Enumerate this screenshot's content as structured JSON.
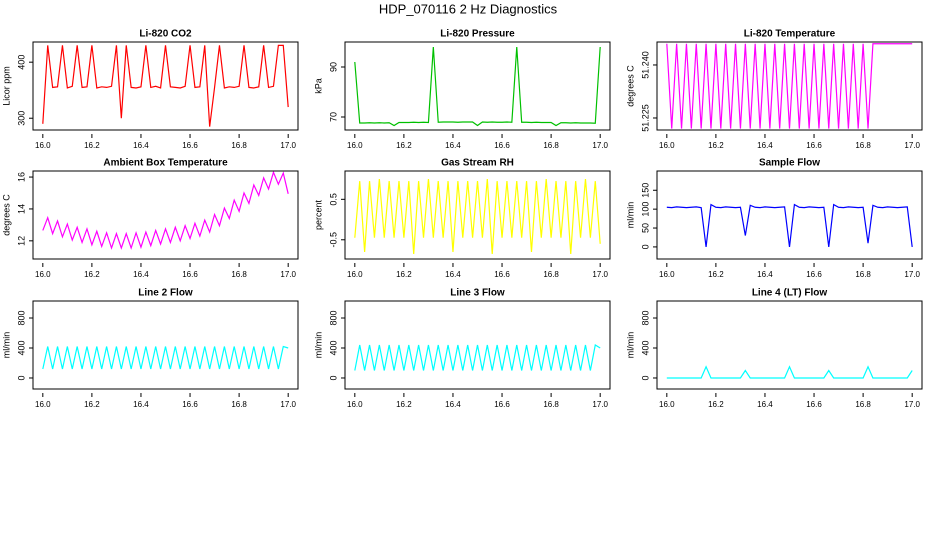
{
  "title": "HDP_070116  2 Hz Diagnostics",
  "chart_data": [
    {
      "type": "line",
      "title": "Li-820 CO2",
      "ylabel": "Licor ppm",
      "color": "#ff0000",
      "x": [
        16,
        16.02,
        16.04,
        16.06,
        16.08,
        16.1,
        16.12,
        16.14,
        16.16,
        16.18,
        16.2,
        16.22,
        16.24,
        16.26,
        16.28,
        16.3,
        16.32,
        16.34,
        16.36,
        16.38,
        16.4,
        16.42,
        16.44,
        16.46,
        16.48,
        16.5,
        16.52,
        16.54,
        16.56,
        16.58,
        16.6,
        16.62,
        16.64,
        16.66,
        16.68,
        16.7,
        16.72,
        16.74,
        16.76,
        16.78,
        16.8,
        16.82,
        16.84,
        16.86,
        16.88,
        16.9,
        16.92,
        16.94,
        16.96,
        16.98,
        17
      ],
      "values": [
        290,
        430,
        355,
        356,
        430,
        354,
        357,
        430,
        355,
        356,
        430,
        354,
        356,
        355,
        357,
        430,
        300,
        430,
        355,
        354,
        356,
        430,
        355,
        357,
        354,
        430,
        356,
        355,
        354,
        357,
        430,
        355,
        356,
        430,
        285,
        355,
        430,
        354,
        356,
        355,
        357,
        430,
        355,
        354,
        356,
        430,
        355,
        357,
        430,
        430,
        320
      ],
      "xlim": [
        15.96,
        17.04
      ],
      "xticks": [
        {
          "value": 16,
          "label": "16.0"
        },
        16.2,
        16.4,
        16.6,
        16.8,
        {
          "value": 17,
          "label": "17.0"
        }
      ],
      "ylim": [
        279,
        436
      ],
      "yticks": [
        300,
        400
      ]
    },
    {
      "type": "line",
      "title": "Li-820 Pressure",
      "ylabel": "kPa",
      "color": "#00c000",
      "x": [
        16,
        16.02,
        16.04,
        16.06,
        16.08,
        16.1,
        16.12,
        16.14,
        16.16,
        16.18,
        16.2,
        16.22,
        16.24,
        16.26,
        16.28,
        16.3,
        16.32,
        16.34,
        16.36,
        16.38,
        16.4,
        16.42,
        16.44,
        16.46,
        16.48,
        16.5,
        16.52,
        16.54,
        16.56,
        16.58,
        16.6,
        16.62,
        16.64,
        16.66,
        16.68,
        16.7,
        16.72,
        16.74,
        16.76,
        16.78,
        16.8,
        16.82,
        16.84,
        16.86,
        16.88,
        16.9,
        16.92,
        16.94,
        16.96,
        16.98,
        17
      ],
      "values": [
        92,
        67.6,
        67.6,
        67.7,
        67.6,
        67.7,
        67.6,
        67.7,
        66.6,
        67.8,
        67.8,
        67.8,
        67.9,
        67.8,
        67.9,
        67.8,
        98,
        67.9,
        68,
        68,
        68,
        67.9,
        68,
        68,
        68,
        66.6,
        68,
        67.9,
        68,
        67.9,
        67.9,
        68,
        67.9,
        98,
        67.9,
        67.9,
        67.8,
        67.9,
        67.8,
        67.8,
        67.8,
        66.6,
        67.7,
        67.7,
        67.6,
        67.7,
        67.6,
        67.6,
        67.6,
        67.5,
        98
      ],
      "xlim": [
        15.96,
        17.04
      ],
      "xticks": [
        {
          "value": 16,
          "label": "16.0"
        },
        16.2,
        16.4,
        16.6,
        16.8,
        {
          "value": 17,
          "label": "17.0"
        }
      ],
      "ylim": [
        64.8,
        100
      ],
      "yticks": [
        70,
        90
      ]
    },
    {
      "type": "line",
      "title": "Li-820 Temperature",
      "ylabel": "degrees C",
      "color": "#ff00ff",
      "x": [
        16,
        16.02,
        16.04,
        16.06,
        16.08,
        16.1,
        16.12,
        16.14,
        16.16,
        16.18,
        16.2,
        16.22,
        16.24,
        16.26,
        16.28,
        16.3,
        16.32,
        16.34,
        16.36,
        16.38,
        16.4,
        16.42,
        16.44,
        16.46,
        16.48,
        16.5,
        16.52,
        16.54,
        16.56,
        16.58,
        16.6,
        16.62,
        16.64,
        16.66,
        16.68,
        16.7,
        16.72,
        16.74,
        16.76,
        16.78,
        16.8,
        16.82,
        16.84,
        16.86,
        16.88,
        16.9,
        16.92,
        16.94,
        16.96,
        16.98,
        17
      ],
      "values": [
        51.246,
        51.222,
        51.246,
        51.222,
        51.246,
        51.222,
        51.246,
        51.222,
        51.246,
        51.222,
        51.246,
        51.222,
        51.246,
        51.222,
        51.246,
        51.222,
        51.246,
        51.222,
        51.246,
        51.222,
        51.246,
        51.222,
        51.246,
        51.222,
        51.246,
        51.222,
        51.246,
        51.222,
        51.246,
        51.222,
        51.246,
        51.222,
        51.246,
        51.222,
        51.246,
        51.222,
        51.246,
        51.222,
        51.246,
        51.222,
        51.246,
        51.222,
        51.246,
        51.246,
        51.246,
        51.246,
        51.246,
        51.246,
        51.246,
        51.246,
        51.246
      ],
      "xlim": [
        15.96,
        17.04
      ],
      "xticks": [
        {
          "value": 16,
          "label": "16.0"
        },
        16.2,
        16.4,
        16.6,
        16.8,
        {
          "value": 17,
          "label": "17.0"
        }
      ],
      "ylim": [
        51.2216,
        51.2465
      ],
      "yticks": [
        51.225,
        {
          "value": 51.24,
          "label": "51.240"
        }
      ]
    },
    {
      "type": "line",
      "title": "Ambient Box Temperature",
      "ylabel": "degrees C",
      "color": "#ff00ff",
      "x": [
        16,
        16.02,
        16.04,
        16.06,
        16.08,
        16.1,
        16.12,
        16.14,
        16.16,
        16.18,
        16.2,
        16.22,
        16.24,
        16.26,
        16.28,
        16.3,
        16.32,
        16.34,
        16.36,
        16.38,
        16.4,
        16.42,
        16.44,
        16.46,
        16.48,
        16.5,
        16.52,
        16.54,
        16.56,
        16.58,
        16.6,
        16.62,
        16.64,
        16.66,
        16.68,
        16.7,
        16.72,
        16.74,
        16.76,
        16.78,
        16.8,
        16.82,
        16.84,
        16.86,
        16.88,
        16.9,
        16.92,
        16.94,
        16.96,
        16.98,
        17
      ],
      "values": [
        12.65,
        13.45,
        12.45,
        13.25,
        12.25,
        13.05,
        12.05,
        12.85,
        11.9,
        12.75,
        11.75,
        12.6,
        11.65,
        12.5,
        11.55,
        12.45,
        11.55,
        12.45,
        11.55,
        12.5,
        11.6,
        12.55,
        11.7,
        12.65,
        11.8,
        12.75,
        11.9,
        12.85,
        12.0,
        12.95,
        12.15,
        13.1,
        12.3,
        13.3,
        12.55,
        13.65,
        12.95,
        14.05,
        13.4,
        14.55,
        13.85,
        15.0,
        14.35,
        15.5,
        14.85,
        15.95,
        15.25,
        16.3,
        15.55,
        16.25,
        14.95
      ],
      "xlim": [
        15.96,
        17.04
      ],
      "xticks": [
        {
          "value": 16,
          "label": "16.0"
        },
        16.2,
        16.4,
        16.6,
        16.8,
        {
          "value": 17,
          "label": "17.0"
        }
      ],
      "ylim": [
        10.86,
        16.38
      ],
      "yticks": [
        12,
        14,
        16
      ]
    },
    {
      "type": "line",
      "title": "Gas Stream RH",
      "ylabel": "percent",
      "color": "#ffff00",
      "x": [
        16,
        16.02,
        16.04,
        16.06,
        16.08,
        16.1,
        16.12,
        16.14,
        16.16,
        16.18,
        16.2,
        16.22,
        16.24,
        16.26,
        16.28,
        16.3,
        16.32,
        16.34,
        16.36,
        16.38,
        16.4,
        16.42,
        16.44,
        16.46,
        16.48,
        16.5,
        16.52,
        16.54,
        16.56,
        16.58,
        16.6,
        16.62,
        16.64,
        16.66,
        16.68,
        16.7,
        16.72,
        16.74,
        16.76,
        16.78,
        16.8,
        16.82,
        16.84,
        16.86,
        16.88,
        16.9,
        16.92,
        16.94,
        16.96,
        16.98,
        17
      ],
      "values": [
        -0.45,
        0.95,
        -0.8,
        0.95,
        -0.45,
        1,
        -0.45,
        0.95,
        -0.45,
        0.95,
        -0.45,
        0.95,
        -0.85,
        0.95,
        -0.45,
        1,
        -0.45,
        0.95,
        -0.45,
        0.95,
        -0.8,
        0.95,
        -0.45,
        0.95,
        -0.45,
        0.95,
        -0.45,
        1,
        -0.85,
        0.95,
        -0.45,
        0.95,
        -0.45,
        0.95,
        -0.45,
        0.95,
        -0.8,
        0.95,
        -0.45,
        1,
        -0.45,
        0.95,
        -0.45,
        0.95,
        -0.85,
        0.95,
        -0.45,
        1,
        -0.45,
        0.95,
        -0.6
      ],
      "xlim": [
        15.96,
        17.04
      ],
      "xticks": [
        {
          "value": 16,
          "label": "16.0"
        },
        16.2,
        16.4,
        16.6,
        16.8,
        {
          "value": 17,
          "label": "17.0"
        }
      ],
      "ylim": [
        -0.975,
        1.2
      ],
      "yticks": [
        -0.5,
        0.5
      ]
    },
    {
      "type": "line",
      "title": "Sample Flow",
      "ylabel": "ml/min",
      "color": "#0000ff",
      "x": [
        16,
        16.02,
        16.04,
        16.06,
        16.08,
        16.1,
        16.12,
        16.14,
        16.16,
        16.18,
        16.2,
        16.22,
        16.24,
        16.26,
        16.28,
        16.3,
        16.32,
        16.34,
        16.36,
        16.38,
        16.4,
        16.42,
        16.44,
        16.46,
        16.48,
        16.5,
        16.52,
        16.54,
        16.56,
        16.58,
        16.6,
        16.62,
        16.64,
        16.66,
        16.68,
        16.7,
        16.72,
        16.74,
        16.76,
        16.78,
        16.8,
        16.82,
        16.84,
        16.86,
        16.88,
        16.9,
        16.92,
        16.94,
        16.96,
        16.98,
        17
      ],
      "values": [
        105,
        104,
        106,
        105,
        104,
        105,
        106,
        104,
        0,
        112,
        105,
        104,
        106,
        105,
        104,
        105,
        30,
        110,
        105,
        104,
        106,
        105,
        104,
        105,
        106,
        0,
        112,
        105,
        104,
        106,
        105,
        104,
        105,
        0,
        112,
        105,
        104,
        106,
        105,
        104,
        105,
        10,
        110,
        105,
        104,
        106,
        105,
        104,
        105,
        106,
        0
      ],
      "xlim": [
        15.96,
        17.04
      ],
      "xticks": [
        {
          "value": 16,
          "label": "16.0"
        },
        16.2,
        16.4,
        16.6,
        16.8,
        {
          "value": 17,
          "label": "17.0"
        }
      ],
      "ylim": [
        -32,
        201
      ],
      "yticks": [
        0,
        50,
        100,
        150
      ]
    },
    {
      "type": "line",
      "title": "Line 2 Flow",
      "ylabel": "ml/min",
      "color": "#00ffff",
      "x": [
        16,
        16.02,
        16.04,
        16.06,
        16.08,
        16.1,
        16.12,
        16.14,
        16.16,
        16.18,
        16.2,
        16.22,
        16.24,
        16.26,
        16.28,
        16.3,
        16.32,
        16.34,
        16.36,
        16.38,
        16.4,
        16.42,
        16.44,
        16.46,
        16.48,
        16.5,
        16.52,
        16.54,
        16.56,
        16.58,
        16.6,
        16.62,
        16.64,
        16.66,
        16.68,
        16.7,
        16.72,
        16.74,
        16.76,
        16.78,
        16.8,
        16.82,
        16.84,
        16.86,
        16.88,
        16.9,
        16.92,
        16.94,
        16.96,
        16.98,
        17
      ],
      "values": [
        120,
        420,
        120,
        420,
        120,
        420,
        120,
        420,
        120,
        420,
        120,
        420,
        120,
        420,
        120,
        420,
        120,
        420,
        120,
        420,
        120,
        420,
        120,
        420,
        120,
        420,
        120,
        420,
        120,
        420,
        120,
        420,
        120,
        420,
        120,
        420,
        120,
        420,
        120,
        420,
        120,
        420,
        120,
        420,
        120,
        420,
        120,
        420,
        120,
        420,
        400
      ],
      "xlim": [
        15.96,
        17.04
      ],
      "xticks": [
        {
          "value": 16,
          "label": "16.0"
        },
        16.2,
        16.4,
        16.6,
        16.8,
        {
          "value": 17,
          "label": "17.0"
        }
      ],
      "ylim": [
        -147,
        1027
      ],
      "yticks": [
        0,
        400,
        800
      ]
    },
    {
      "type": "line",
      "title": "Line 3 Flow",
      "ylabel": "ml/min",
      "color": "#00ffff",
      "x": [
        16,
        16.02,
        16.04,
        16.06,
        16.08,
        16.1,
        16.12,
        16.14,
        16.16,
        16.18,
        16.2,
        16.22,
        16.24,
        16.26,
        16.28,
        16.3,
        16.32,
        16.34,
        16.36,
        16.38,
        16.4,
        16.42,
        16.44,
        16.46,
        16.48,
        16.5,
        16.52,
        16.54,
        16.56,
        16.58,
        16.6,
        16.62,
        16.64,
        16.66,
        16.68,
        16.7,
        16.72,
        16.74,
        16.76,
        16.78,
        16.8,
        16.82,
        16.84,
        16.86,
        16.88,
        16.9,
        16.92,
        16.94,
        16.96,
        16.98,
        17
      ],
      "values": [
        100,
        440,
        100,
        440,
        100,
        440,
        100,
        440,
        100,
        440,
        100,
        440,
        100,
        440,
        100,
        440,
        100,
        440,
        100,
        440,
        100,
        440,
        100,
        440,
        100,
        440,
        100,
        440,
        100,
        440,
        100,
        440,
        100,
        440,
        100,
        440,
        100,
        440,
        100,
        440,
        100,
        440,
        100,
        440,
        100,
        440,
        100,
        440,
        100,
        440,
        400
      ],
      "xlim": [
        15.96,
        17.04
      ],
      "xticks": [
        {
          "value": 16,
          "label": "16.0"
        },
        16.2,
        16.4,
        16.6,
        16.8,
        {
          "value": 17,
          "label": "17.0"
        }
      ],
      "ylim": [
        -147,
        1027
      ],
      "yticks": [
        0,
        400,
        800
      ]
    },
    {
      "type": "line",
      "title": "Line 4 (LT) Flow",
      "ylabel": "ml/min",
      "color": "#00ffff",
      "x": [
        16,
        16.02,
        16.04,
        16.06,
        16.08,
        16.1,
        16.12,
        16.14,
        16.16,
        16.18,
        16.2,
        16.22,
        16.24,
        16.26,
        16.28,
        16.3,
        16.32,
        16.34,
        16.36,
        16.38,
        16.4,
        16.42,
        16.44,
        16.46,
        16.48,
        16.5,
        16.52,
        16.54,
        16.56,
        16.58,
        16.6,
        16.62,
        16.64,
        16.66,
        16.68,
        16.7,
        16.72,
        16.74,
        16.76,
        16.78,
        16.8,
        16.82,
        16.84,
        16.86,
        16.88,
        16.9,
        16.92,
        16.94,
        16.96,
        16.98,
        17
      ],
      "values": [
        0,
        0,
        0,
        0,
        0,
        0,
        0,
        0,
        150,
        0,
        0,
        0,
        0,
        0,
        0,
        0,
        100,
        0,
        0,
        0,
        0,
        0,
        0,
        0,
        0,
        150,
        0,
        0,
        0,
        0,
        0,
        0,
        0,
        100,
        0,
        0,
        0,
        0,
        0,
        0,
        0,
        150,
        0,
        0,
        0,
        0,
        0,
        0,
        0,
        0,
        100
      ],
      "xlim": [
        15.96,
        17.04
      ],
      "xticks": [
        {
          "value": 16,
          "label": "16.0"
        },
        16.2,
        16.4,
        16.6,
        16.8,
        {
          "value": 17,
          "label": "17.0"
        }
      ],
      "ylim": [
        -147,
        1027
      ],
      "yticks": [
        0,
        400,
        800
      ]
    }
  ]
}
